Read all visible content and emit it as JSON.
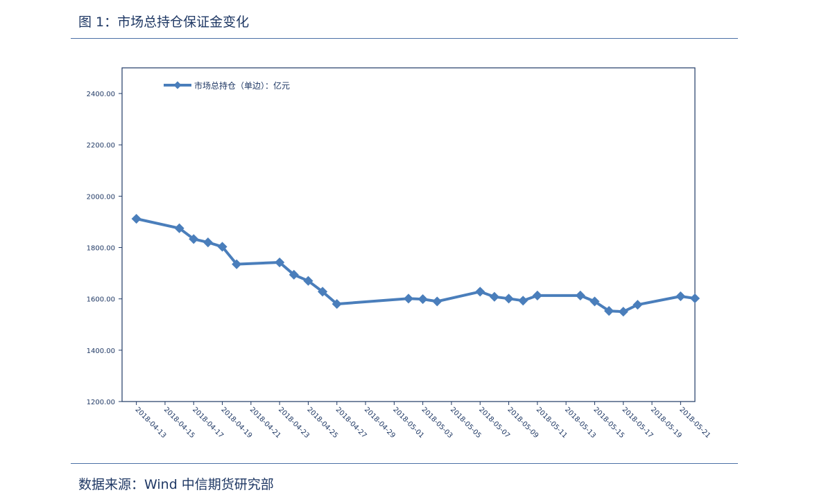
{
  "figure": {
    "title": "图 1：市场总持仓保证金变化",
    "source": "数据来源：Wind  中信期货研究部"
  },
  "colors": {
    "series": "#4a7ebb",
    "axis": "#1f3864",
    "rule": "#4a6fa5"
  },
  "chart_data": {
    "type": "line",
    "title": "",
    "xlabel": "",
    "ylabel": "",
    "ylim": [
      1200,
      2500
    ],
    "yticks": [
      "1200.00",
      "1400.00",
      "1600.00",
      "1800.00",
      "2000.00",
      "2200.00",
      "2400.00"
    ],
    "ytick_values": [
      1200,
      1400,
      1600,
      1800,
      2000,
      2200,
      2400
    ],
    "xlim": [
      "2018-04-12",
      "2018-05-22"
    ],
    "xticks": [
      "2018-04-13",
      "2018-04-15",
      "2018-04-17",
      "2018-04-19",
      "2018-04-21",
      "2018-04-23",
      "2018-04-25",
      "2018-04-27",
      "2018-04-29",
      "2018-05-01",
      "2018-05-03",
      "2018-05-05",
      "2018-05-07",
      "2018-05-09",
      "2018-05-11",
      "2018-05-13",
      "2018-05-15",
      "2018-05-17",
      "2018-05-19",
      "2018-05-21"
    ],
    "legend_position": "top-left",
    "series": [
      {
        "name": "市场总持仓（单边）：亿元",
        "x": [
          "2018-04-13",
          "2018-04-16",
          "2018-04-17",
          "2018-04-18",
          "2018-04-19",
          "2018-04-20",
          "2018-04-23",
          "2018-04-24",
          "2018-04-25",
          "2018-04-26",
          "2018-04-27",
          "2018-05-02",
          "2018-05-03",
          "2018-05-04",
          "2018-05-07",
          "2018-05-08",
          "2018-05-09",
          "2018-05-10",
          "2018-05-11",
          "2018-05-14",
          "2018-05-15",
          "2018-05-16",
          "2018-05-17",
          "2018-05-18",
          "2018-05-21",
          "2018-05-22"
        ],
        "values": [
          1912,
          1875,
          1833,
          1820,
          1803,
          1735,
          1742,
          1694,
          1670,
          1628,
          1580,
          1601,
          1599,
          1590,
          1628,
          1608,
          1601,
          1593,
          1613,
          1613,
          1590,
          1553,
          1550,
          1577,
          1610,
          1602
        ]
      }
    ]
  }
}
